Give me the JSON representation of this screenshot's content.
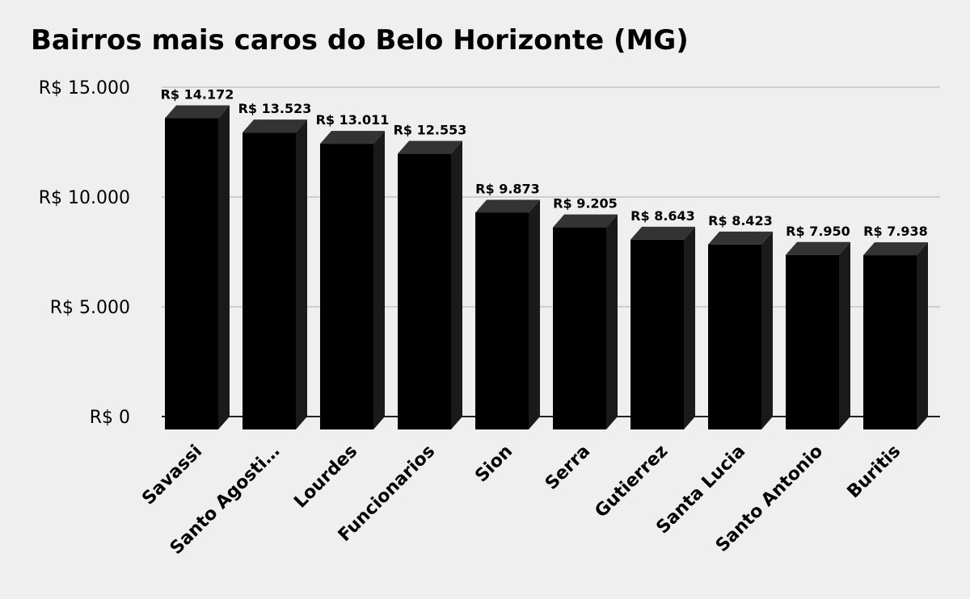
{
  "chart_data": {
    "type": "bar",
    "title": "Bairros mais caros do Belo Horizonte (MG)",
    "categories": [
      "Savassi",
      "Santo Agosti…",
      "Lourdes",
      "Funcionarios",
      "Sion",
      "Serra",
      "Gutierrez",
      "Santa Lucia",
      "Santo Antonio",
      "Buritis"
    ],
    "values": [
      14172,
      13523,
      13011,
      12553,
      9873,
      9205,
      8643,
      8423,
      7950,
      7938
    ],
    "value_labels": [
      "R$ 14.172",
      "R$ 13.523",
      "R$ 13.011",
      "R$ 12.553",
      "R$ 9.873",
      "R$ 9.205",
      "R$ 8.643",
      "R$ 8.423",
      "R$ 7.950",
      "R$ 7.938"
    ],
    "y_ticks": [
      0,
      5000,
      10000,
      15000
    ],
    "y_tick_labels": [
      "R$ 0",
      "R$ 5.000",
      "R$ 10.000",
      "R$ 15.000"
    ],
    "ylim": [
      0,
      15000
    ],
    "xlabel": "",
    "ylabel": "",
    "grid": true,
    "style": "3d-column",
    "colors": {
      "background": "#efefef",
      "bar_front": "#000000",
      "bar_top": "#333333",
      "bar_side": "#1a1a1a",
      "gridline": "#bbbbbb",
      "axis": "#222222",
      "text": "#000000"
    }
  }
}
